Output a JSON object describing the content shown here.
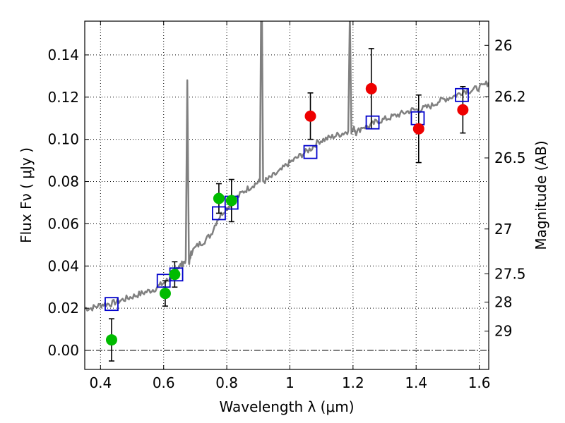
{
  "chart_data": {
    "type": "scatter",
    "xlabel": "Wavelength  λ (μm)",
    "ylabel": "Flux  Fν  ( μJy )",
    "y2label": "Magnitude (AB)",
    "xlim": [
      0.35,
      1.63
    ],
    "ylim": [
      -0.009,
      0.156
    ],
    "grid": true,
    "x_ticks": [
      0.4,
      0.6,
      0.8,
      1.0,
      1.2,
      1.4,
      1.6
    ],
    "x_tick_labels": [
      "0.4",
      "0.6",
      "0.8",
      "1",
      "1.2",
      "1.4",
      "1.6"
    ],
    "y_ticks": [
      0.0,
      0.02,
      0.04,
      0.06,
      0.08,
      0.1,
      0.12,
      0.14
    ],
    "y_tick_labels": [
      "0.00",
      "0.02",
      "0.04",
      "0.06",
      "0.08",
      "0.10",
      "0.12",
      "0.14"
    ],
    "y2_ticks": [
      {
        "label": "26",
        "mag": 26.0
      },
      {
        "label": "26.2",
        "mag": 26.2
      },
      {
        "label": "26.5",
        "mag": 26.5
      },
      {
        "label": "27",
        "mag": 27.0
      },
      {
        "label": "27.5",
        "mag": 27.5
      },
      {
        "label": "28",
        "mag": 28.0
      },
      {
        "label": "29",
        "mag": 29.0
      }
    ],
    "colors": {
      "spectrum": "#808080",
      "model_box": "#0000cc",
      "green_points": "#00bb00",
      "red_points": "#ee0000",
      "errorbar": "#000000"
    },
    "spectrum": {
      "x": [
        0.35,
        0.37,
        0.39,
        0.41,
        0.43,
        0.45,
        0.47,
        0.49,
        0.51,
        0.53,
        0.55,
        0.57,
        0.59,
        0.61,
        0.62,
        0.63,
        0.64,
        0.65,
        0.66,
        0.67,
        0.675,
        0.68,
        0.685,
        0.69,
        0.71,
        0.73,
        0.75,
        0.77,
        0.79,
        0.81,
        0.83,
        0.85,
        0.87,
        0.89,
        0.905,
        0.91,
        0.915,
        0.93,
        0.95,
        0.97,
        0.99,
        1.01,
        1.03,
        1.05,
        1.07,
        1.09,
        1.11,
        1.13,
        1.15,
        1.17,
        1.185,
        1.19,
        1.195,
        1.205,
        1.21,
        1.23,
        1.25,
        1.27,
        1.29,
        1.31,
        1.33,
        1.35,
        1.37,
        1.39,
        1.41,
        1.43,
        1.45,
        1.47,
        1.49,
        1.51,
        1.53,
        1.55,
        1.57,
        1.59,
        1.61,
        1.63
      ],
      "y": [
        0.02,
        0.02,
        0.021,
        0.022,
        0.022,
        0.023,
        0.024,
        0.025,
        0.026,
        0.027,
        0.028,
        0.029,
        0.031,
        0.033,
        0.034,
        0.036,
        0.039,
        0.04,
        0.041,
        0.043,
        0.128,
        0.04,
        0.045,
        0.047,
        0.05,
        0.052,
        0.055,
        0.062,
        0.066,
        0.069,
        0.072,
        0.075,
        0.077,
        0.079,
        0.08,
        0.19,
        0.08,
        0.081,
        0.083,
        0.085,
        0.088,
        0.09,
        0.092,
        0.094,
        0.096,
        0.099,
        0.1,
        0.101,
        0.102,
        0.103,
        0.104,
        0.16,
        0.104,
        0.105,
        0.103,
        0.106,
        0.106,
        0.108,
        0.109,
        0.11,
        0.111,
        0.112,
        0.113,
        0.114,
        0.114,
        0.115,
        0.116,
        0.118,
        0.119,
        0.12,
        0.121,
        0.123,
        0.123,
        0.124,
        0.125,
        0.127
      ]
    },
    "series": [
      {
        "marker": "square",
        "x": [
          0.435,
          0.6,
          0.64,
          0.775,
          0.815,
          1.065,
          1.262,
          1.405,
          1.545
        ],
        "y": [
          0.022,
          0.033,
          0.036,
          0.065,
          0.07,
          0.094,
          0.108,
          0.11,
          0.121
        ]
      },
      {
        "marker": "circle",
        "color": "green",
        "x": [
          0.435,
          0.605,
          0.635,
          0.775,
          0.815
        ],
        "y": [
          0.005,
          0.027,
          0.036,
          0.072,
          0.071
        ],
        "err": [
          0.01,
          0.006,
          0.006,
          0.007,
          0.01
        ]
      },
      {
        "marker": "circle",
        "color": "red",
        "x": [
          1.065,
          1.258,
          1.408,
          1.548
        ],
        "y": [
          0.111,
          0.124,
          0.105,
          0.114
        ],
        "err": [
          0.011,
          0.019,
          0.016,
          0.011
        ]
      }
    ]
  }
}
